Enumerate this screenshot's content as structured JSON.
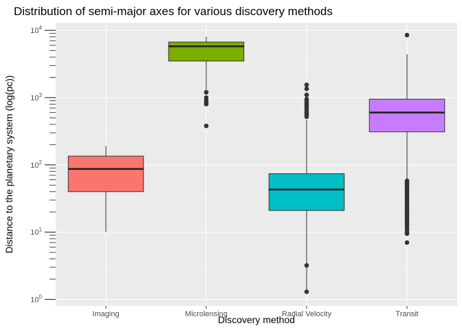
{
  "chart_data": {
    "type": "boxplot",
    "title": "Distribution of semi-major axes for various discovery methods",
    "xlabel": "Discovery method",
    "ylabel": "Distance to the planetary system (log(pc))",
    "y_scale": "log10",
    "ylim": [
      0.8,
      13000
    ],
    "y_ticks": [
      {
        "value": 1,
        "base": "10",
        "exp": "0"
      },
      {
        "value": 10,
        "base": "10",
        "exp": "1"
      },
      {
        "value": 100,
        "base": "10",
        "exp": "2"
      },
      {
        "value": 1000,
        "base": "10",
        "exp": "3"
      },
      {
        "value": 10000,
        "base": "10",
        "exp": "4"
      }
    ],
    "grid": true,
    "legend": "none",
    "categories": [
      "Imaging",
      "Microlensing",
      "Radial Velocity",
      "Transit"
    ],
    "boxes": [
      {
        "category": "Imaging",
        "color": "#F8766D",
        "whisker_low": 10,
        "q1": 40,
        "median": 87,
        "q3": 135,
        "whisker_high": 190,
        "outliers": []
      },
      {
        "category": "Microlensing",
        "color": "#7CAE00",
        "whisker_low": 1100,
        "q1": 3500,
        "median": 5800,
        "q3": 6700,
        "whisker_high": 8000,
        "outliers": [
          1200,
          1000,
          900,
          850,
          800,
          380
        ]
      },
      {
        "category": "Radial Velocity",
        "color": "#00BFC4",
        "whisker_low": 1.3,
        "q1": 21,
        "median": 43,
        "q3": 74,
        "whisker_high": 470,
        "outliers": [
          1550,
          1350,
          1100,
          950,
          900,
          850,
          800,
          750,
          700,
          650,
          600,
          560,
          520,
          3.2,
          1.3
        ]
      },
      {
        "category": "Transit",
        "color": "#C77CFF",
        "whisker_low": 60,
        "q1": 310,
        "median": 600,
        "q3": 950,
        "whisker_high": 4400,
        "outliers": [
          8500,
          58,
          55,
          52,
          50,
          48,
          45,
          42,
          40,
          38,
          36,
          34,
          32,
          30,
          28,
          26,
          25,
          24,
          22,
          21,
          20,
          19,
          18,
          17,
          16,
          15,
          14,
          13,
          12,
          11,
          10,
          9.5,
          7
        ]
      }
    ]
  }
}
